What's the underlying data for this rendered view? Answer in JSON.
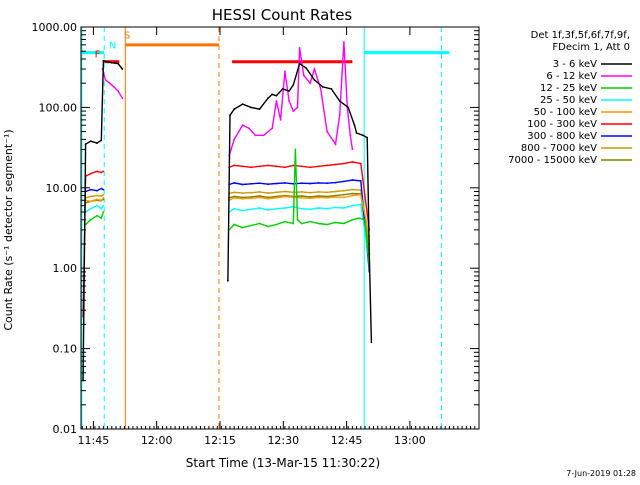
{
  "chart_data": {
    "type": "line",
    "title": "HESSI Count Rates",
    "xlabel": "Start Time (13-Mar-15 11:30:22)",
    "ylabel": "Count Rate (s⁻¹ detector segment⁻¹)",
    "yscale": "log",
    "ylim": [
      0.01,
      1000
    ],
    "xlim_minutes": [
      11.7,
      106.0
    ],
    "grid": false,
    "x_ticks": [
      {
        "label": "11:45",
        "minutes": 14.63
      },
      {
        "label": "12:00",
        "minutes": 29.63
      },
      {
        "label": "12:15",
        "minutes": 44.63
      },
      {
        "label": "12:30",
        "minutes": 59.63
      },
      {
        "label": "12:45",
        "minutes": 74.63
      },
      {
        "label": "13:00",
        "minutes": 89.63
      }
    ],
    "y_ticks": [
      {
        "label": "0.01",
        "value": 0.01
      },
      {
        "label": "0.10",
        "value": 0.1
      },
      {
        "label": "1.00",
        "value": 1
      },
      {
        "label": "10.00",
        "value": 10
      },
      {
        "label": "100.00",
        "value": 100
      },
      {
        "label": "1000.00",
        "value": 1000
      }
    ],
    "legend_title": [
      "Det 1f,3f,5f,6f,7f,9f,",
      "FDecim 1, Att 0"
    ],
    "legend_position": "outside-right",
    "series": [
      {
        "name": "3 - 6 keV",
        "color": "#000000",
        "segments": [
          {
            "minutes": [
              12.2,
              12.8,
              14.0,
              15.5,
              16.5,
              17.0,
              17.8,
              19.0,
              20.5,
              21.5
            ],
            "values": [
              0.04,
              35,
              38,
              36,
              39,
              380,
              370,
              360,
              350,
              300
            ]
          },
          {
            "minutes": [
              46.5,
              47.0,
              48.0,
              50.0,
              52.0,
              54.0,
              56.0,
              57.0,
              58.0,
              59.5,
              61.0,
              62.0,
              63.5,
              65.0,
              67.0,
              69.0,
              71.0,
              73.0,
              75.0,
              76.5,
              77.0,
              78.5,
              79.5,
              80.0,
              80.5
            ],
            "values": [
              0.7,
              80,
              95,
              110,
              100,
              95,
              130,
              145,
              140,
              170,
              160,
              190,
              350,
              310,
              220,
              180,
              170,
              120,
              100,
              60,
              48,
              45,
              42,
              1.5,
              0.12
            ]
          }
        ]
      },
      {
        "name": "6 - 12 keV",
        "color": "#ff00ff",
        "segments": [
          {
            "minutes": [
              16.8,
              17.5,
              18.5,
              19.5,
              20.5,
              21.5
            ],
            "values": [
              300,
              220,
              200,
              180,
              160,
              130
            ]
          },
          {
            "minutes": [
              46.8,
              48.0,
              50.0,
              51.5,
              53.0,
              55.0,
              57.0,
              58.0,
              59.0,
              60.0,
              61.0,
              62.0,
              63.0,
              63.5,
              64.5,
              66.0,
              67.0,
              68.5,
              70.0,
              72.0,
              73.0,
              74.0,
              74.8,
              75.5,
              76.0
            ],
            "values": [
              25,
              40,
              60,
              55,
              45,
              45,
              55,
              120,
              70,
              280,
              120,
              90,
              100,
              550,
              250,
              200,
              300,
              170,
              50,
              35,
              80,
              650,
              100,
              45,
              30
            ]
          }
        ]
      },
      {
        "name": "12 - 25 keV",
        "color": "#00cc00",
        "segments": [
          {
            "minutes": [
              12.8,
              14.0,
              15.5,
              16.5,
              17.0
            ],
            "values": [
              3.5,
              4.0,
              4.5,
              4.2,
              5.0
            ]
          },
          {
            "minutes": [
              46.8,
              48.0,
              50.0,
              52.0,
              54.0,
              56.0,
              58.0,
              60.0,
              62.0,
              62.5,
              63.0,
              64.0,
              66.0,
              68.0,
              70.0,
              72.0,
              74.0,
              76.0,
              77.5,
              79.0,
              80.0
            ],
            "values": [
              3.0,
              3.5,
              3.2,
              3.4,
              3.6,
              3.3,
              3.5,
              3.8,
              3.6,
              30,
              4.0,
              3.6,
              3.8,
              3.6,
              3.5,
              3.7,
              3.6,
              4.0,
              4.2,
              4.0,
              1.0
            ]
          }
        ]
      },
      {
        "name": "25 - 50 keV",
        "color": "#00ffff",
        "segments": [
          {
            "minutes": [
              12.8,
              14.0,
              15.5,
              16.5,
              17.0
            ],
            "values": [
              5.0,
              5.5,
              6.0,
              5.5,
              6.0
            ]
          },
          {
            "minutes": [
              46.8,
              48.0,
              50.0,
              52.0,
              54.0,
              56.0,
              58.0,
              60.0,
              62.0,
              64.0,
              66.0,
              68.0,
              70.0,
              72.0,
              74.0,
              76.0,
              78.0,
              80.0
            ],
            "values": [
              5.0,
              5.5,
              5.2,
              5.4,
              5.6,
              5.3,
              5.5,
              5.6,
              5.8,
              5.5,
              5.4,
              5.6,
              5.5,
              5.7,
              5.6,
              6.0,
              6.2,
              1.2
            ]
          }
        ]
      },
      {
        "name": "50 - 100 keV",
        "color": "#ff9900",
        "segments": [
          {
            "minutes": [
              12.8,
              14.0,
              15.5,
              16.5,
              17.0
            ],
            "values": [
              7.0,
              6.8,
              7.2,
              7.0,
              7.5
            ]
          },
          {
            "minutes": [
              46.8,
              48.0,
              50.0,
              52.0,
              54.0,
              56.0,
              58.0,
              60.0,
              62.0,
              64.0,
              66.0,
              68.0,
              70.0,
              72.0,
              74.0,
              76.0,
              78.0,
              80.0
            ],
            "values": [
              7.0,
              7.5,
              7.3,
              7.4,
              7.6,
              7.3,
              7.5,
              7.8,
              7.6,
              7.5,
              7.4,
              7.6,
              7.5,
              7.7,
              7.6,
              8.0,
              8.2,
              2.5
            ]
          }
        ]
      },
      {
        "name": "100 - 300 keV",
        "color": "#ff0000",
        "segments": [
          {
            "minutes": [
              12.2,
              12.8,
              14.0,
              15.5,
              16.5,
              17.0
            ],
            "values": [
              0.25,
              14,
              15,
              16,
              15.5,
              16
            ]
          },
          {
            "minutes": [
              46.8,
              48.0,
              50.0,
              52.0,
              54.0,
              56.0,
              58.0,
              60.0,
              62.0,
              64.0,
              66.0,
              68.0,
              70.0,
              72.0,
              74.0,
              76.0,
              78.0,
              80.0
            ],
            "values": [
              18,
              19,
              18.5,
              18,
              18.5,
              19,
              18.5,
              18,
              19,
              18.5,
              18,
              18.5,
              19,
              19.5,
              20,
              21,
              20,
              3.0
            ]
          }
        ]
      },
      {
        "name": "300 - 800 keV",
        "color": "#0000ff",
        "segments": [
          {
            "minutes": [
              12.8,
              14.0,
              15.5,
              16.5,
              17.0
            ],
            "values": [
              9.0,
              9.5,
              9.2,
              9.8,
              9.5
            ]
          },
          {
            "minutes": [
              46.8,
              48.0,
              50.0,
              52.0,
              54.0,
              56.0,
              58.0,
              60.0,
              62.0,
              64.0,
              66.0,
              68.0,
              70.0,
              72.0,
              74.0,
              76.0,
              78.0,
              80.0
            ],
            "values": [
              11,
              11.5,
              11,
              11.2,
              11.4,
              11.1,
              11.3,
              11.5,
              11.2,
              11.4,
              11.3,
              11.5,
              11.4,
              11.6,
              12,
              12.5,
              12.2,
              0.9
            ]
          }
        ]
      },
      {
        "name": "800 - 7000 keV",
        "color": "#cc9900",
        "segments": [
          {
            "minutes": [
              12.8,
              14.0,
              15.5,
              16.5,
              17.0
            ],
            "values": [
              7.5,
              7.8,
              8.0,
              7.9,
              8.2
            ]
          },
          {
            "minutes": [
              46.8,
              48.0,
              50.0,
              52.0,
              54.0,
              56.0,
              58.0,
              60.0,
              62.0,
              64.0,
              66.0,
              68.0,
              70.0,
              72.0,
              74.0,
              76.0,
              78.0,
              80.0
            ],
            "values": [
              8.5,
              8.8,
              8.6,
              8.7,
              8.9,
              8.6,
              8.8,
              9.0,
              8.8,
              8.9,
              8.7,
              8.9,
              8.8,
              9.0,
              9.2,
              9.5,
              9.4,
              2.0
            ]
          }
        ]
      },
      {
        "name": "7000 - 15000 keV",
        "color": "#808000",
        "segments": [
          {
            "minutes": [
              12.8,
              14.0,
              15.5,
              16.5,
              17.0
            ],
            "values": [
              6.5,
              6.8,
              7.0,
              6.9,
              7.2
            ]
          },
          {
            "minutes": [
              46.8,
              48.0,
              50.0,
              52.0,
              54.0,
              56.0,
              58.0,
              60.0,
              62.0,
              64.0,
              66.0,
              68.0,
              70.0,
              72.0,
              74.0,
              76.0,
              78.0,
              80.0
            ],
            "values": [
              7.5,
              7.8,
              7.6,
              7.7,
              7.9,
              7.6,
              7.8,
              8.0,
              7.8,
              7.9,
              7.7,
              7.9,
              7.8,
              8.0,
              8.2,
              8.5,
              8.4,
              1.5
            ]
          }
        ]
      }
    ],
    "vertical_markers": [
      {
        "minutes": 11.9,
        "color": "#00ffff",
        "style": "solid"
      },
      {
        "minutes": 17.2,
        "color": "#00ffff",
        "style": "dashed"
      },
      {
        "minutes": 22.2,
        "color": "#ff7700",
        "style": "solid"
      },
      {
        "minutes": 44.4,
        "color": "#ff7700",
        "style": "dashed"
      },
      {
        "minutes": 78.8,
        "color": "#00ffff",
        "style": "solid"
      },
      {
        "minutes": 97.1,
        "color": "#00ffff",
        "style": "dashed"
      }
    ],
    "intervals": [
      {
        "from": 11.7,
        "to": 17.2,
        "value": 480,
        "color": "#00ffff"
      },
      {
        "from": 78.8,
        "to": 99.0,
        "value": 480,
        "color": "#00ffff"
      },
      {
        "from": 22.2,
        "to": 44.4,
        "value": 600,
        "color": "#ff7700"
      },
      {
        "from": 47.5,
        "to": 76.0,
        "value": 370,
        "color": "#ff0000"
      },
      {
        "from": 17.2,
        "to": 20.8,
        "value": 370,
        "color": "#ff0000"
      }
    ],
    "flags": [
      {
        "text": "F",
        "minutes": 15.6,
        "value": 420,
        "color": "#ff0000"
      },
      {
        "text": "N",
        "minutes": 19.2,
        "value": 540,
        "color": "#00ffff"
      },
      {
        "text": "S",
        "minutes": 22.6,
        "value": 720,
        "color": "#ff7700"
      }
    ],
    "footer_date": "7-Jun-2019 01:28"
  }
}
